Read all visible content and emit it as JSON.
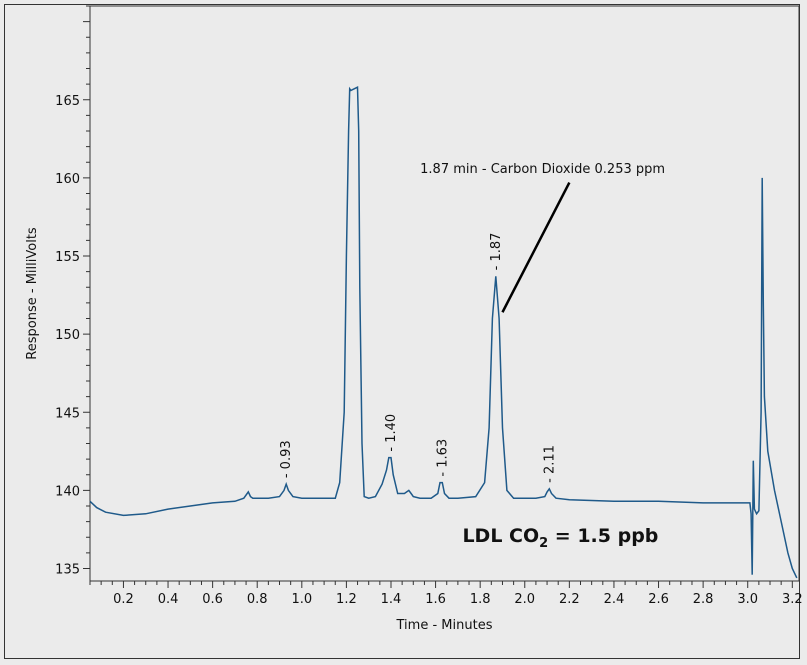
{
  "chart_data": {
    "type": "line",
    "xlabel": "Time  - Minutes",
    "ylabel": "Response  - MilliVolts",
    "xlim": [
      0.05,
      3.23
    ],
    "ylim": [
      134.2,
      171
    ],
    "x_ticks": [
      "0.2",
      "0.4",
      "0.6",
      "0.8",
      "1.0",
      "1.2",
      "1.4",
      "1.6",
      "1.8",
      "2.0",
      "2.2",
      "2.4",
      "2.6",
      "2.8",
      "3.0",
      "3.2"
    ],
    "y_ticks": [
      "135",
      "140",
      "145",
      "150",
      "155",
      "160",
      "165"
    ],
    "line_color": "#1f5a8a",
    "series": [
      {
        "x": [
          0.05,
          0.08,
          0.12,
          0.2,
          0.3,
          0.4,
          0.5,
          0.6,
          0.7,
          0.74,
          0.76,
          0.77,
          0.78,
          0.8,
          0.85,
          0.9,
          0.92,
          0.93,
          0.94,
          0.96,
          1.0,
          1.1,
          1.15,
          1.17,
          1.19,
          1.2,
          1.21,
          1.215,
          1.22,
          1.25,
          1.255,
          1.26,
          1.27,
          1.28,
          1.3,
          1.33,
          1.36,
          1.38,
          1.39,
          1.4,
          1.41,
          1.43,
          1.46,
          1.48,
          1.49,
          1.5,
          1.53,
          1.58,
          1.61,
          1.62,
          1.63,
          1.64,
          1.66,
          1.7,
          1.78,
          1.82,
          1.84,
          1.855,
          1.87,
          1.885,
          1.9,
          1.92,
          1.95,
          2.0,
          2.05,
          2.09,
          2.1,
          2.11,
          2.12,
          2.14,
          2.2,
          2.4,
          2.6,
          2.8,
          3.0,
          3.01,
          3.015,
          3.02,
          3.025,
          3.03,
          3.04,
          3.05,
          3.06,
          3.065,
          3.07,
          3.075,
          3.09,
          3.12,
          3.15,
          3.18,
          3.2,
          3.22
        ],
        "y": [
          139.3,
          138.9,
          138.6,
          138.4,
          138.5,
          138.8,
          139.0,
          139.2,
          139.3,
          139.5,
          139.9,
          139.6,
          139.5,
          139.5,
          139.5,
          139.6,
          140.0,
          140.4,
          140.0,
          139.6,
          139.5,
          139.5,
          139.5,
          140.5,
          145.0,
          155.0,
          163.0,
          165.7,
          165.6,
          165.8,
          163.0,
          153.0,
          143.0,
          139.6,
          139.5,
          139.6,
          140.4,
          141.3,
          142.1,
          142.1,
          141.0,
          139.8,
          139.8,
          140.0,
          139.8,
          139.6,
          139.5,
          139.5,
          139.8,
          140.5,
          140.5,
          139.8,
          139.5,
          139.5,
          139.6,
          140.5,
          144.0,
          151.0,
          153.7,
          151.0,
          144.0,
          140.0,
          139.5,
          139.5,
          139.5,
          139.6,
          139.9,
          140.1,
          139.8,
          139.5,
          139.4,
          139.3,
          139.3,
          139.2,
          139.2,
          139.2,
          138.5,
          134.6,
          141.9,
          138.8,
          138.5,
          138.7,
          145.0,
          160.0,
          152.0,
          146.0,
          142.5,
          140.0,
          138.0,
          136.0,
          135.0,
          134.4
        ]
      }
    ],
    "peak_labels": [
      {
        "x": 0.93,
        "y": 140.4,
        "text": "0.93"
      },
      {
        "x": 1.4,
        "y": 142.1,
        "text": "1.40"
      },
      {
        "x": 1.63,
        "y": 140.5,
        "text": "1.63"
      },
      {
        "x": 1.87,
        "y": 153.7,
        "text": "1.87"
      },
      {
        "x": 2.11,
        "y": 140.1,
        "text": "2.11"
      }
    ],
    "annotation": {
      "text": "1.87 min - Carbon Dioxide  0.253 ppm",
      "text_x": 2.08,
      "text_y": 160.3,
      "line_from": [
        2.2,
        159.7
      ],
      "line_to": [
        1.9,
        151.4
      ]
    },
    "ldl_text_pre": "LDL CO",
    "ldl_sub": "2",
    "ldl_text_post": " = 1.5 ppb",
    "ldl_x": 2.16,
    "ldl_y": 136.7
  }
}
